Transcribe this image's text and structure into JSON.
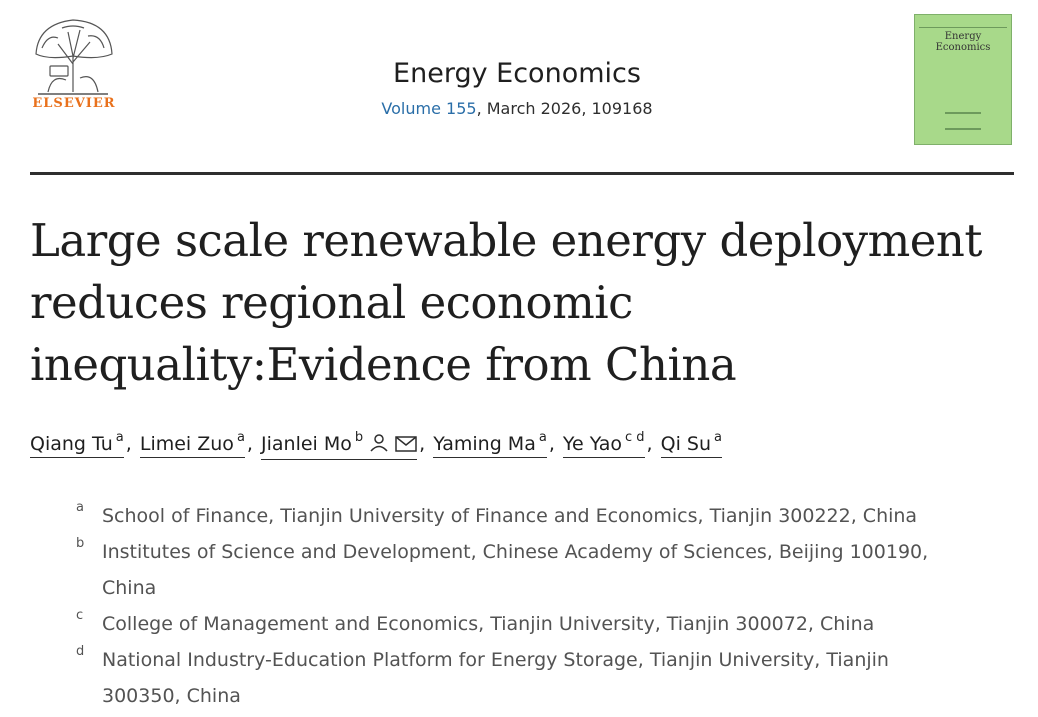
{
  "publisher": {
    "name": "ELSEVIER",
    "logo_icon": "elsevier-tree-logo"
  },
  "journal": {
    "title": "Energy Economics",
    "volume_link": "Volume 155",
    "issue_rest": ", March 2026, 109168",
    "cover_title_line1": "Energy",
    "cover_title_line2": "Economics",
    "cover_color": "#a8d98a"
  },
  "article": {
    "title_line1": "Large scale renewable energy deployment",
    "title_line2": "reduces regional economic",
    "title_line3": "inequality:Evidence from China"
  },
  "authors": [
    {
      "name": "Qiang Tu",
      "sup": "a"
    },
    {
      "name": "Limei Zuo",
      "sup": "a"
    },
    {
      "name": "Jianlei Mo",
      "sup": "b"
    },
    {
      "name": "Yaming Ma",
      "sup": "a"
    },
    {
      "name": "Ye Yao",
      "sup": "c d"
    },
    {
      "name": "Qi Su",
      "sup": "a"
    }
  ],
  "affiliations": [
    {
      "label": "a",
      "text": "School of Finance, Tianjin University of Finance and Economics, Tianjin 300222, China"
    },
    {
      "label": "b",
      "text": "Institutes of Science and Development, Chinese Academy of Sciences, Beijing 100190, China"
    },
    {
      "label": "c",
      "text": "College of Management and Economics, Tianjin University, Tianjin 300072, China"
    },
    {
      "label": "d",
      "text": "National Industry-Education Platform for Energy Storage, Tianjin University, Tianjin 300350, China"
    }
  ],
  "separator": ","
}
